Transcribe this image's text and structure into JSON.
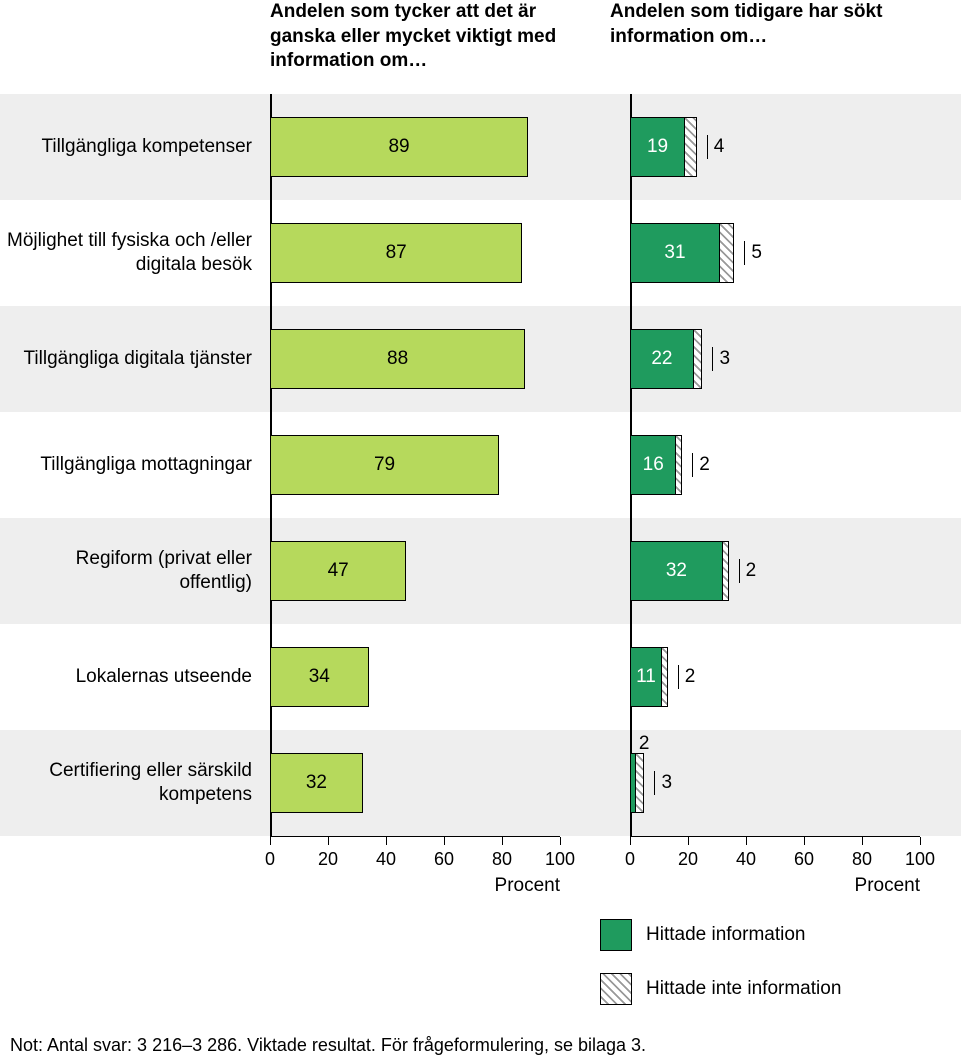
{
  "chart": {
    "type": "grouped-bar-horizontal",
    "background_color": "#ffffff",
    "alt_row_color": "#eeeeee",
    "colors": {
      "light_bar": "#b6d95c",
      "dark_bar": "#1f9b5e",
      "hatch_fg": "#999999",
      "hatch_bg": "#ffffff",
      "text": "#000000",
      "axis": "#000000"
    },
    "font_sizes": {
      "header": 19,
      "label": 19,
      "value": 19,
      "tick": 18,
      "footnote": 18
    },
    "panels": {
      "left": {
        "header": "Andelen som tycker att det är ganska eller mycket viktigt med information om…",
        "axis_title": "Procent",
        "xlim": [
          0,
          100
        ],
        "tick_step": 20
      },
      "right": {
        "header": "Andelen som tidigare har sökt information om…",
        "axis_title": "Procent",
        "xlim": [
          0,
          100
        ],
        "tick_step": 20
      }
    },
    "legend": [
      {
        "label": "Hittade information",
        "style": "dark"
      },
      {
        "label": "Hittade inte information",
        "style": "hatch"
      }
    ],
    "categories": [
      {
        "label": "Tillgängliga kompetenser",
        "left_value": 89,
        "right_found": 19,
        "right_not_found": 4
      },
      {
        "label": "Möjlighet till fysiska och /eller digitala besök",
        "left_value": 87,
        "right_found": 31,
        "right_not_found": 5
      },
      {
        "label": "Tillgängliga digitala tjänster",
        "left_value": 88,
        "right_found": 22,
        "right_not_found": 3
      },
      {
        "label": "Tillgängliga mottagningar",
        "left_value": 79,
        "right_found": 16,
        "right_not_found": 2
      },
      {
        "label": "Regiform (privat eller offentlig)",
        "left_value": 47,
        "right_found": 32,
        "right_not_found": 2
      },
      {
        "label": "Lokalernas utseende",
        "left_value": 34,
        "right_found": 11,
        "right_not_found": 2
      },
      {
        "label": "Certifiering eller särskild kompetens",
        "left_value": 32,
        "right_found": 2,
        "right_not_found": 3
      }
    ]
  },
  "footnote": "Not: Antal svar: 3 216–3 286. Viktade resultat. För frågeformulering, se bilaga 3."
}
